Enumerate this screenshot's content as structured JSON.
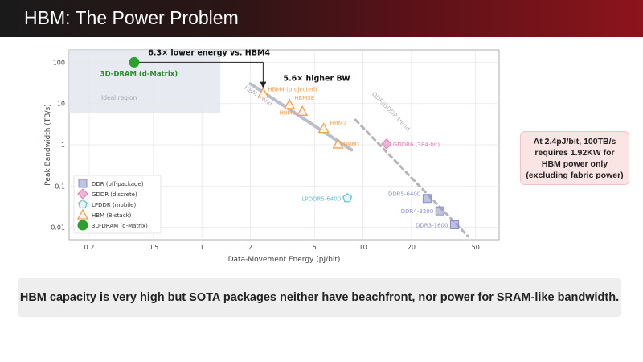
{
  "slide": {
    "title": "HBM: The Power Problem",
    "callout": "At 2.4pJ/bit, 100TB/s requires 1.92KW for HBM power only (excluding fabric power)",
    "banner": "HBM capacity is very high but SOTA packages neither have beachfront, nor power for SRAM-like bandwidth."
  },
  "chart_data": {
    "type": "scatter",
    "xlabel": "Data-Movement Energy (pJ/bit)",
    "ylabel": "Peak Bandwidth (TB/s)",
    "xscale": "log",
    "yscale": "log",
    "xlim": [
      0.15,
      70
    ],
    "ylim": [
      0.005,
      200
    ],
    "x_ticks": [
      0.2,
      0.5,
      1,
      2,
      5,
      10,
      20,
      50
    ],
    "x_tick_labels": [
      "0.2",
      "0.5",
      "1",
      "2",
      "5",
      "10",
      "20",
      "50"
    ],
    "y_ticks": [
      0.01,
      0.1,
      1,
      10,
      100
    ],
    "y_tick_labels": [
      "0.01",
      "0.1",
      "1",
      "10",
      "100"
    ],
    "grid": true,
    "legend_position": "lower-left",
    "series": [
      {
        "name": "DDR (off-package)",
        "marker": "square",
        "color": "#8b8fc9",
        "points": [
          {
            "x": 25,
            "y": 0.05,
            "label": "DDR5-6400"
          },
          {
            "x": 30,
            "y": 0.025,
            "label": "DDR4-3200"
          },
          {
            "x": 37,
            "y": 0.0115,
            "label": "DDR3-1600"
          }
        ]
      },
      {
        "name": "GDDR (discrete)",
        "marker": "diamond",
        "color": "#e07bb8",
        "points": [
          {
            "x": 14,
            "y": 1.05,
            "label": "GDDR6 (384-bit)"
          }
        ]
      },
      {
        "name": "LPDDR (mobile)",
        "marker": "pentagon",
        "color": "#6bc2cf",
        "points": [
          {
            "x": 8,
            "y": 0.051,
            "label": "LPDDR5-6400"
          }
        ]
      },
      {
        "name": "HBM (8-stack)",
        "marker": "triangle",
        "color": "#f2a254",
        "points": [
          {
            "x": 2.4,
            "y": 18,
            "label": "HBM4 (projected)"
          },
          {
            "x": 3.5,
            "y": 9.5,
            "label": "HBM3E"
          },
          {
            "x": 4.2,
            "y": 6.5,
            "label": "HBM3"
          },
          {
            "x": 5.7,
            "y": 2.5,
            "label": "HBM2"
          },
          {
            "x": 7,
            "y": 1.05,
            "label": "HBM1"
          }
        ]
      },
      {
        "name": "3D-DRAM (d-Matrix)",
        "marker": "circle",
        "color": "#2ca02c",
        "points": [
          {
            "x": 0.38,
            "y": 100,
            "label": "3D-DRAM (d-Matrix)"
          }
        ]
      }
    ],
    "trend_lines": [
      {
        "label": "HBM trend",
        "from": [
          2.0,
          30
        ],
        "to": [
          8.5,
          0.75
        ],
        "color": "#b9bfcc",
        "style": "solid"
      },
      {
        "label": "DDR/GDDR trend",
        "from": [
          9,
          4
        ],
        "to": [
          45,
          0.006
        ],
        "color": "#b5b5b5",
        "style": "dashed"
      }
    ],
    "ideal_region": {
      "label": "Ideal region",
      "x": [
        0.15,
        1.3
      ],
      "y": [
        6,
        200
      ]
    },
    "annotations": [
      {
        "text": "6.3× lower energy vs. HBM4",
        "from": [
          0.38,
          100
        ],
        "to": [
          2.4,
          100
        ]
      },
      {
        "text": "5.6× higher BW",
        "from": [
          2.4,
          100
        ],
        "to": [
          2.4,
          18
        ]
      }
    ]
  }
}
